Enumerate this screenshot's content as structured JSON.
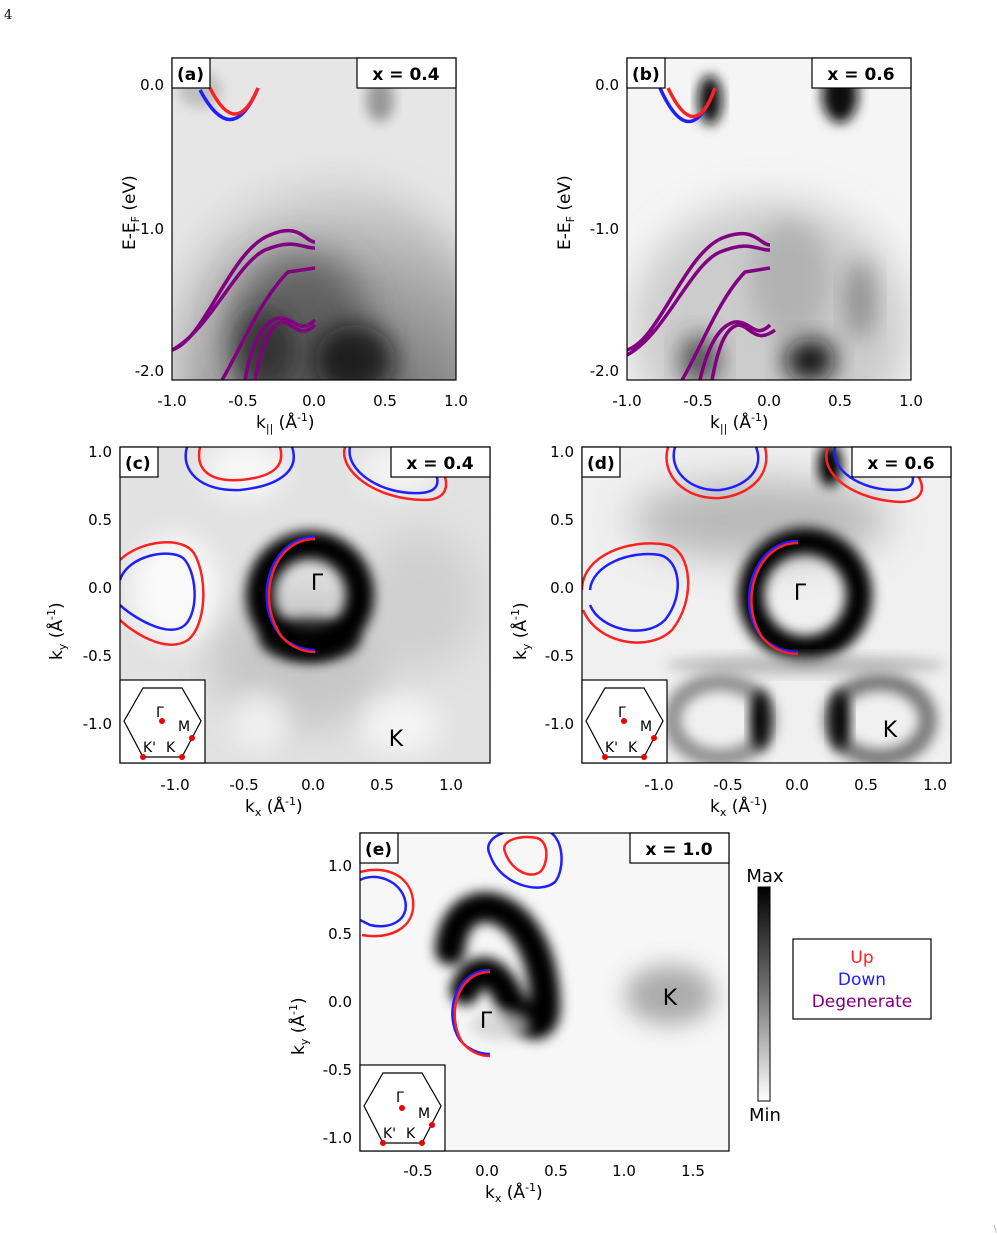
{
  "page_number": "4",
  "corner_mark": "\\",
  "colors": {
    "up": "#ff2020",
    "down": "#2020ff",
    "degenerate": "#800080"
  },
  "legend": {
    "up": "Up",
    "down": "Down",
    "degenerate": "Degenerate"
  },
  "colorbar": {
    "max": "Max",
    "min": "Min"
  },
  "inset": {
    "gamma": "Γ",
    "m": "M",
    "kprime": "K'",
    "k": "K"
  },
  "chart_data": [
    {
      "type": "heatmap",
      "panel": "(a)",
      "tag": "x = 0.4",
      "xlabel_main": "k",
      "xlabel_sub": "||",
      "xlabel_unit": " (Å",
      "xlabel_exp": "-1",
      "xlabel_end": ")",
      "ylabel_main": "E-E",
      "ylabel_sub": "F",
      "ylabel_end": " (eV)",
      "xlim": [
        -1.0,
        1.0
      ],
      "ylim": [
        -2.1,
        0.1
      ],
      "xticks": [
        "-1.0",
        "-0.5",
        "0.0",
        "0.5",
        "1.0"
      ],
      "yticks": [
        "0.0",
        "-1.0",
        "-2.0"
      ]
    },
    {
      "type": "heatmap",
      "panel": "(b)",
      "tag": "x = 0.6",
      "xlabel_main": "k",
      "xlabel_sub": "||",
      "xlabel_unit": " (Å",
      "xlabel_exp": "-1",
      "xlabel_end": ")",
      "ylabel_main": "E-E",
      "ylabel_sub": "F",
      "ylabel_end": " (eV)",
      "xlim": [
        -1.0,
        1.0
      ],
      "ylim": [
        -2.1,
        0.1
      ],
      "xticks": [
        "-1.0",
        "-0.5",
        "0.0",
        "0.5",
        "1.0"
      ],
      "yticks": [
        "0.0",
        "-1.0",
        "-2.0"
      ]
    },
    {
      "type": "heatmap",
      "panel": "(c)",
      "tag": "x = 0.4",
      "xlabel_main": "k",
      "xlabel_sub": "x",
      "xlabel_unit": " (Å",
      "xlabel_exp": "-1",
      "xlabel_end": ")",
      "ylabel_main": "k",
      "ylabel_sub": "y",
      "ylabel_unit": " (Å",
      "ylabel_exp": "-1",
      "ylabel_end": ")",
      "xlim": [
        -1.4,
        1.3
      ],
      "ylim": [
        -1.3,
        1.05
      ],
      "xticks": [
        "-1.0",
        "-0.5",
        "0.0",
        "0.5",
        "1.0"
      ],
      "yticks": [
        "1.0",
        "0.5",
        "0.0",
        "-0.5",
        "-1.0"
      ],
      "points": {
        "gamma": "Γ",
        "k": "K"
      }
    },
    {
      "type": "heatmap",
      "panel": "(d)",
      "tag": "x = 0.6",
      "xlabel_main": "k",
      "xlabel_sub": "x",
      "xlabel_unit": " (Å",
      "xlabel_exp": "-1",
      "xlabel_end": ")",
      "ylabel_main": "k",
      "ylabel_sub": "y",
      "ylabel_unit": " (Å",
      "ylabel_exp": "-1",
      "ylabel_end": ")",
      "xlim": [
        -1.4,
        1.1
      ],
      "ylim": [
        -1.3,
        1.05
      ],
      "xticks": [
        "-1.0",
        "-0.5",
        "0.0",
        "0.5",
        "1.0"
      ],
      "yticks": [
        "1.0",
        "0.5",
        "0.0",
        "-0.5",
        "-1.0"
      ],
      "points": {
        "gamma": "Γ",
        "k": "K"
      }
    },
    {
      "type": "heatmap",
      "panel": "(e)",
      "tag": "x = 1.0",
      "xlabel_main": "k",
      "xlabel_sub": "x",
      "xlabel_unit": " (Å",
      "xlabel_exp": "-1",
      "xlabel_end": ")",
      "ylabel_main": "k",
      "ylabel_sub": "y",
      "ylabel_unit": " (Å",
      "ylabel_exp": "-1",
      "ylabel_end": ")",
      "xlim": [
        -0.9,
        1.8
      ],
      "ylim": [
        -1.1,
        1.25
      ],
      "xticks": [
        "-0.5",
        "0.0",
        "0.5",
        "1.0",
        "1.5"
      ],
      "yticks": [
        "1.0",
        "0.5",
        "0.0",
        "-0.5",
        "-1.0"
      ],
      "points": {
        "gamma": "Γ",
        "k": "K"
      }
    }
  ]
}
